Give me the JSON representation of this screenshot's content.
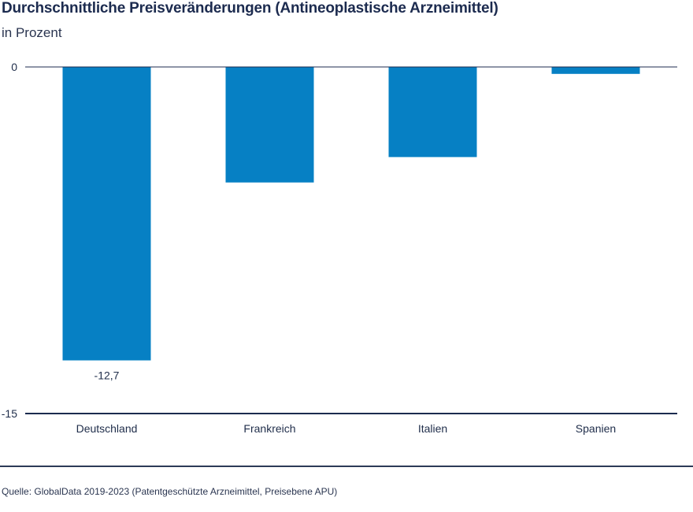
{
  "header": {
    "title": "Durchschnittliche Preisveränderungen (Antineoplastische Arzneimittel)",
    "subtitle": "in Prozent"
  },
  "footer": {
    "source": "Quelle: GlobalData 2019-2023 (Patentgeschützte Arzneimittel, Preisebene APU)"
  },
  "chart_data": {
    "type": "bar",
    "title": "Durchschnittliche Preisveränderungen (Antineoplastische Arzneimittel)",
    "subtitle": "in Prozent",
    "categories": [
      "Deutschland",
      "Frankreich",
      "Italien",
      "Spanien"
    ],
    "values": [
      -12.7,
      -5.0,
      -3.9,
      -0.3
    ],
    "data_labels": [
      "-12,7",
      "",
      "",
      ""
    ],
    "ylim": [
      -15,
      0
    ],
    "y_ticks": [
      0,
      -15
    ],
    "y_tick_labels": [
      "0",
      "-15"
    ],
    "grid": false,
    "legend": "none",
    "bar_color": "#0680c4",
    "axis_color": "#1c2b4f"
  }
}
